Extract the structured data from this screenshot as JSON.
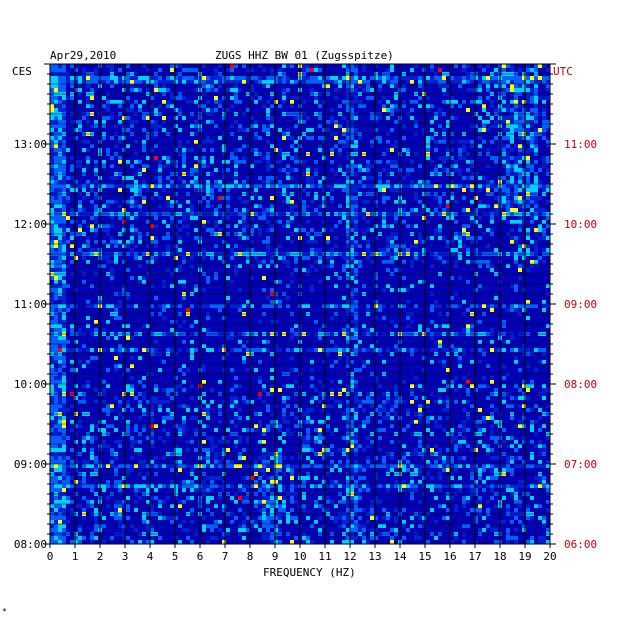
{
  "header": {
    "date": "Apr29,2010",
    "station_title": "ZUGS HHZ BW 01 (Zugsspitze)"
  },
  "left_axis_label": "CES",
  "right_axis_label": "UTC",
  "footer_mark": "*",
  "chart_data": {
    "type": "heatmap",
    "title": "ZUGS HHZ BW 01 (Zugsspitze)",
    "date": "Apr29,2010",
    "xlabel": "FREQUENCY (HZ)",
    "xlim": [
      0,
      20
    ],
    "x_ticks": [
      "0",
      "1",
      "2",
      "3",
      "4",
      "5",
      "6",
      "7",
      "8",
      "9",
      "10",
      "11",
      "12",
      "13",
      "14",
      "15",
      "16",
      "17",
      "18",
      "19",
      "20"
    ],
    "y_ticks_left": [
      "13:00",
      "12:00",
      "11:00",
      "10:00",
      "09:00",
      "08:00"
    ],
    "y_ticks_right": [
      "11:00",
      "10:00",
      "09:00",
      "08:00",
      "07:00",
      "06:00"
    ],
    "y_left_label": "CES",
    "y_right_label": "UTC",
    "colors": {
      "background": "#0000b4",
      "low": "#0020d8",
      "mid": "#0060ff",
      "high": "#00d0ff",
      "peak_yellow": "#ffff00",
      "peak_red": "#ff0000",
      "utc_text": "#cc0000"
    }
  }
}
